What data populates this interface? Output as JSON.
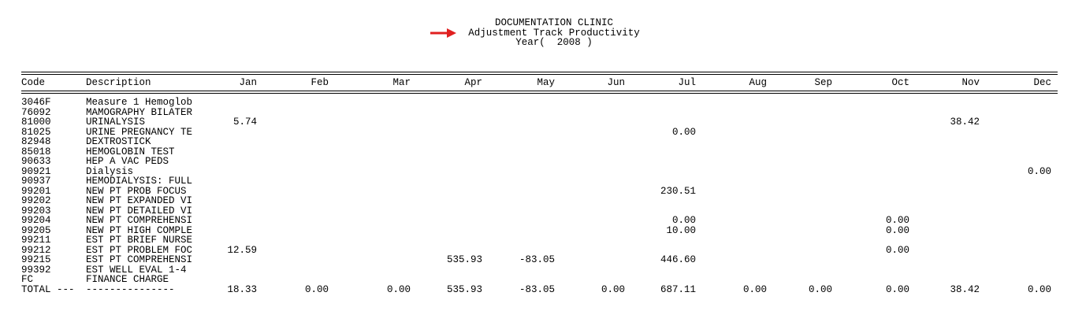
{
  "header": {
    "title": "DOCUMENTATION CLINIC",
    "subtitle": "Adjustment Track Productivity",
    "year": "Year(  2008 )"
  },
  "table": {
    "columns": [
      "Code",
      "Description",
      "Jan",
      "Feb",
      "Mar",
      "Apr",
      "May",
      "Jun",
      "Jul",
      "Aug",
      "Sep",
      "Oct",
      "Nov",
      "Dec"
    ],
    "rows": [
      {
        "code": "3046F",
        "description": "Measure 1 Hemoglob",
        "cells": [
          null,
          null,
          null,
          null,
          null,
          null,
          null,
          null,
          null,
          null,
          null,
          null
        ]
      },
      {
        "code": "76092",
        "description": "MAMOGRAPHY BILATER",
        "cells": [
          null,
          null,
          null,
          null,
          null,
          null,
          null,
          null,
          null,
          null,
          null,
          null
        ]
      },
      {
        "code": "81000",
        "description": "URINALYSIS",
        "cells": [
          "5.74",
          null,
          null,
          null,
          null,
          null,
          null,
          null,
          null,
          null,
          "38.42",
          null
        ]
      },
      {
        "code": "81025",
        "description": "URINE PREGNANCY TE",
        "cells": [
          null,
          null,
          null,
          null,
          null,
          null,
          "0.00",
          null,
          null,
          null,
          null,
          null
        ]
      },
      {
        "code": "82948",
        "description": "DEXTROSTICK",
        "cells": [
          null,
          null,
          null,
          null,
          null,
          null,
          null,
          null,
          null,
          null,
          null,
          null
        ]
      },
      {
        "code": "85018",
        "description": "HEMOGLOBIN TEST",
        "cells": [
          null,
          null,
          null,
          null,
          null,
          null,
          null,
          null,
          null,
          null,
          null,
          null
        ]
      },
      {
        "code": "90633",
        "description": "HEP A VAC PEDS",
        "cells": [
          null,
          null,
          null,
          null,
          null,
          null,
          null,
          null,
          null,
          null,
          null,
          null
        ]
      },
      {
        "code": "90921",
        "description": "Dialysis",
        "cells": [
          null,
          null,
          null,
          null,
          null,
          null,
          null,
          null,
          null,
          null,
          null,
          "0.00"
        ]
      },
      {
        "code": "90937",
        "description": "HEMODIALYSIS: FULL",
        "cells": [
          null,
          null,
          null,
          null,
          null,
          null,
          null,
          null,
          null,
          null,
          null,
          null
        ]
      },
      {
        "code": "99201",
        "description": "NEW PT PROB FOCUS",
        "cells": [
          null,
          null,
          null,
          null,
          null,
          null,
          "230.51",
          null,
          null,
          null,
          null,
          null
        ]
      },
      {
        "code": "99202",
        "description": "NEW PT EXPANDED VI",
        "cells": [
          null,
          null,
          null,
          null,
          null,
          null,
          null,
          null,
          null,
          null,
          null,
          null
        ]
      },
      {
        "code": "99203",
        "description": "NEW PT DETAILED VI",
        "cells": [
          null,
          null,
          null,
          null,
          null,
          null,
          null,
          null,
          null,
          null,
          null,
          null
        ]
      },
      {
        "code": "99204",
        "description": "NEW PT COMPREHENSI",
        "cells": [
          null,
          null,
          null,
          null,
          null,
          null,
          "0.00",
          null,
          null,
          "0.00",
          null,
          null
        ]
      },
      {
        "code": "99205",
        "description": "NEW PT HIGH COMPLE",
        "cells": [
          null,
          null,
          null,
          null,
          null,
          null,
          "10.00",
          null,
          null,
          "0.00",
          null,
          null
        ]
      },
      {
        "code": "99211",
        "description": "EST PT BRIEF NURSE",
        "cells": [
          null,
          null,
          null,
          null,
          null,
          null,
          null,
          null,
          null,
          null,
          null,
          null
        ]
      },
      {
        "code": "99212",
        "description": "EST PT PROBLEM FOC",
        "cells": [
          "12.59",
          null,
          null,
          null,
          null,
          null,
          null,
          null,
          null,
          "0.00",
          null,
          null
        ]
      },
      {
        "code": "99215",
        "description": "EST PT COMPREHENSI",
        "cells": [
          null,
          null,
          null,
          "535.93",
          "-83.05",
          null,
          "446.60",
          null,
          null,
          null,
          null,
          null
        ]
      },
      {
        "code": "99392",
        "description": "EST WELL EVAL 1-4",
        "cells": [
          null,
          null,
          null,
          null,
          null,
          null,
          null,
          null,
          null,
          null,
          null,
          null
        ]
      },
      {
        "code": "FC",
        "description": "FINANCE CHARGE",
        "cells": [
          null,
          null,
          null,
          null,
          null,
          null,
          null,
          null,
          null,
          null,
          null,
          null
        ]
      },
      {
        "code": "TOTAL ---",
        "description": "---------------",
        "cells": [
          "18.33",
          "0.00",
          "0.00",
          "535.93",
          "-83.05",
          "0.00",
          "687.11",
          "0.00",
          "0.00",
          "0.00",
          "38.42",
          "0.00"
        ]
      }
    ]
  }
}
